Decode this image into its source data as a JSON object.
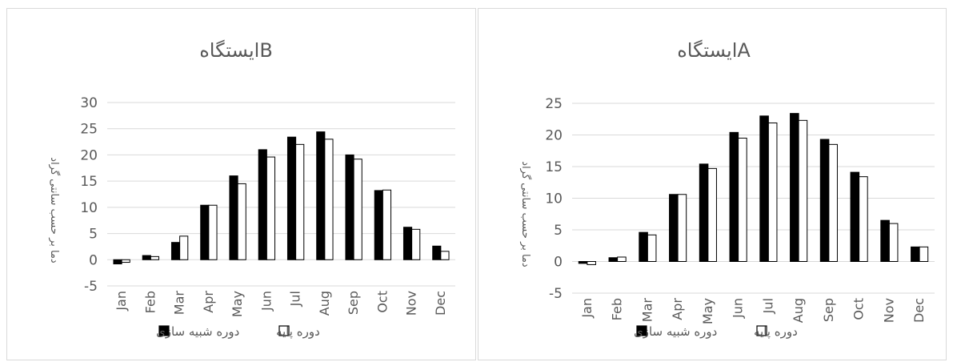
{
  "colors": {
    "sim_fill": "#000000",
    "base_fill": "#ffffff",
    "bar_stroke": "#000000",
    "gridline": "#d9d9d9",
    "text": "#595959"
  },
  "chart_data": [
    {
      "type": "bar",
      "title": "ایستگاهB",
      "ylabel": "دما بر حسب سانتی گراد",
      "xlabel": "",
      "categories": [
        "Jan",
        "Feb",
        "Mar",
        "Apr",
        "May",
        "Jun",
        "Jul",
        "Aug",
        "Sep",
        "Oct",
        "Nov",
        "Dec"
      ],
      "ylim": [
        -5,
        30
      ],
      "yticks": [
        "-5",
        "0",
        "5",
        "10",
        "15",
        "20",
        "25",
        "30"
      ],
      "grid": true,
      "legend_position": "bottom",
      "series": [
        {
          "name": "دوره شبیه سازی",
          "values": [
            -0.8,
            0.8,
            3.3,
            10.4,
            16.0,
            21.0,
            23.4,
            24.4,
            20.0,
            13.2,
            6.2,
            2.6
          ]
        },
        {
          "name": "دوره پایه",
          "values": [
            -0.5,
            0.6,
            4.5,
            10.4,
            14.5,
            19.6,
            22.0,
            23.0,
            19.2,
            13.3,
            5.8,
            1.6
          ]
        }
      ]
    },
    {
      "type": "bar",
      "title": "ایستگاهA",
      "ylabel": "دما بر حسب سانتی گراد",
      "xlabel": "",
      "categories": [
        "Jan",
        "Feb",
        "Mar",
        "Apr",
        "May",
        "Jun",
        "Jul",
        "Aug",
        "Sep",
        "Oct",
        "Nov",
        "Dec"
      ],
      "ylim": [
        -5,
        25
      ],
      "yticks": [
        "-5",
        "0",
        "5",
        "10",
        "15",
        "20",
        "25"
      ],
      "grid": true,
      "legend_position": "bottom",
      "series": [
        {
          "name": "دوره شبیه سازی",
          "values": [
            -0.3,
            0.6,
            4.6,
            10.6,
            15.4,
            20.4,
            23.0,
            23.4,
            19.3,
            14.1,
            6.5,
            2.3
          ]
        },
        {
          "name": "دوره پایه",
          "values": [
            -0.5,
            0.7,
            4.2,
            10.6,
            14.7,
            19.5,
            21.9,
            22.3,
            18.5,
            13.4,
            6.0,
            2.3
          ]
        }
      ]
    }
  ]
}
